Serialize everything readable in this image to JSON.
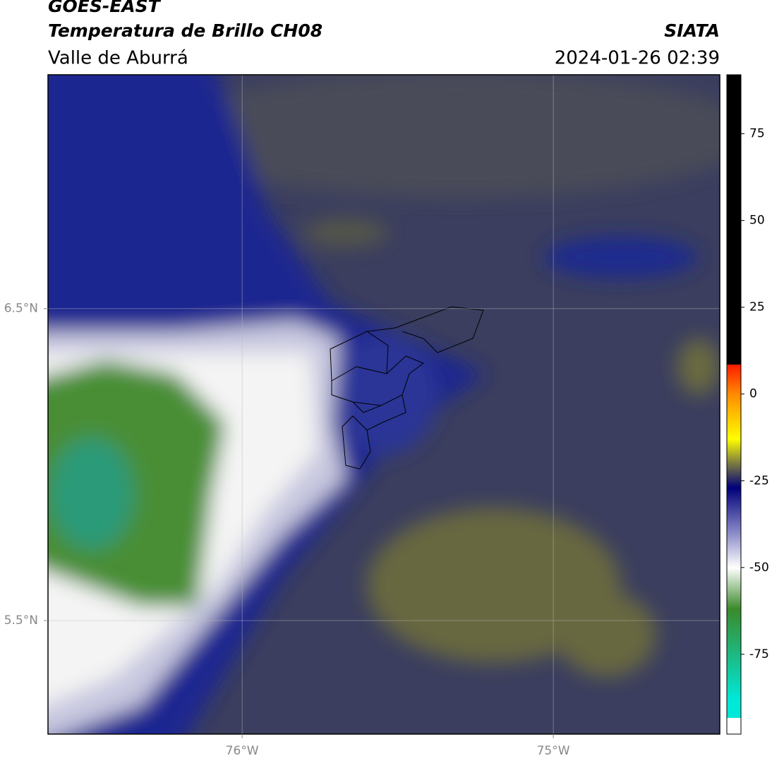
{
  "header": {
    "product": "GOES-EAST",
    "title": "Temperatura de Brillo CH08",
    "region": "Valle de Aburrá",
    "org": "SIATA",
    "datetime": "2024-01-26 02:39"
  },
  "map": {
    "xlim": [
      -76.624,
      -74.465
    ],
    "ylim": [
      5.136,
      7.25
    ],
    "xticks": [
      {
        "value": -76,
        "label": "76°W"
      },
      {
        "value": -75,
        "label": "75°W"
      }
    ],
    "yticks": [
      {
        "value": 6.5,
        "label": "6.5°N"
      },
      {
        "value": 5.5,
        "label": "5.5°N"
      }
    ],
    "grid": true
  },
  "colorbar": {
    "lim": [
      -98,
      92
    ],
    "ticks": [
      75,
      50,
      25,
      0,
      -25,
      -50,
      -75
    ],
    "stops": [
      {
        "value": 92,
        "color": "#000000"
      },
      {
        "value": 8.5,
        "color": "#000000"
      },
      {
        "value": 8.5,
        "color": "#ff1a00"
      },
      {
        "value": 0,
        "color": "#ff8a00"
      },
      {
        "value": -13,
        "color": "#ffff00"
      },
      {
        "value": -20,
        "color": "#7a7a40"
      },
      {
        "value": -27,
        "color": "#00007a"
      },
      {
        "value": -40,
        "color": "#8a8ac8"
      },
      {
        "value": -50,
        "color": "#ffffff"
      },
      {
        "value": -62,
        "color": "#3a8a2a"
      },
      {
        "value": -88,
        "color": "#00e8d8"
      },
      {
        "value": -93.3,
        "color": "#00e8d8"
      },
      {
        "value": -93.3,
        "color": "#ffffff"
      },
      {
        "value": -98,
        "color": "#ffffff"
      }
    ]
  }
}
